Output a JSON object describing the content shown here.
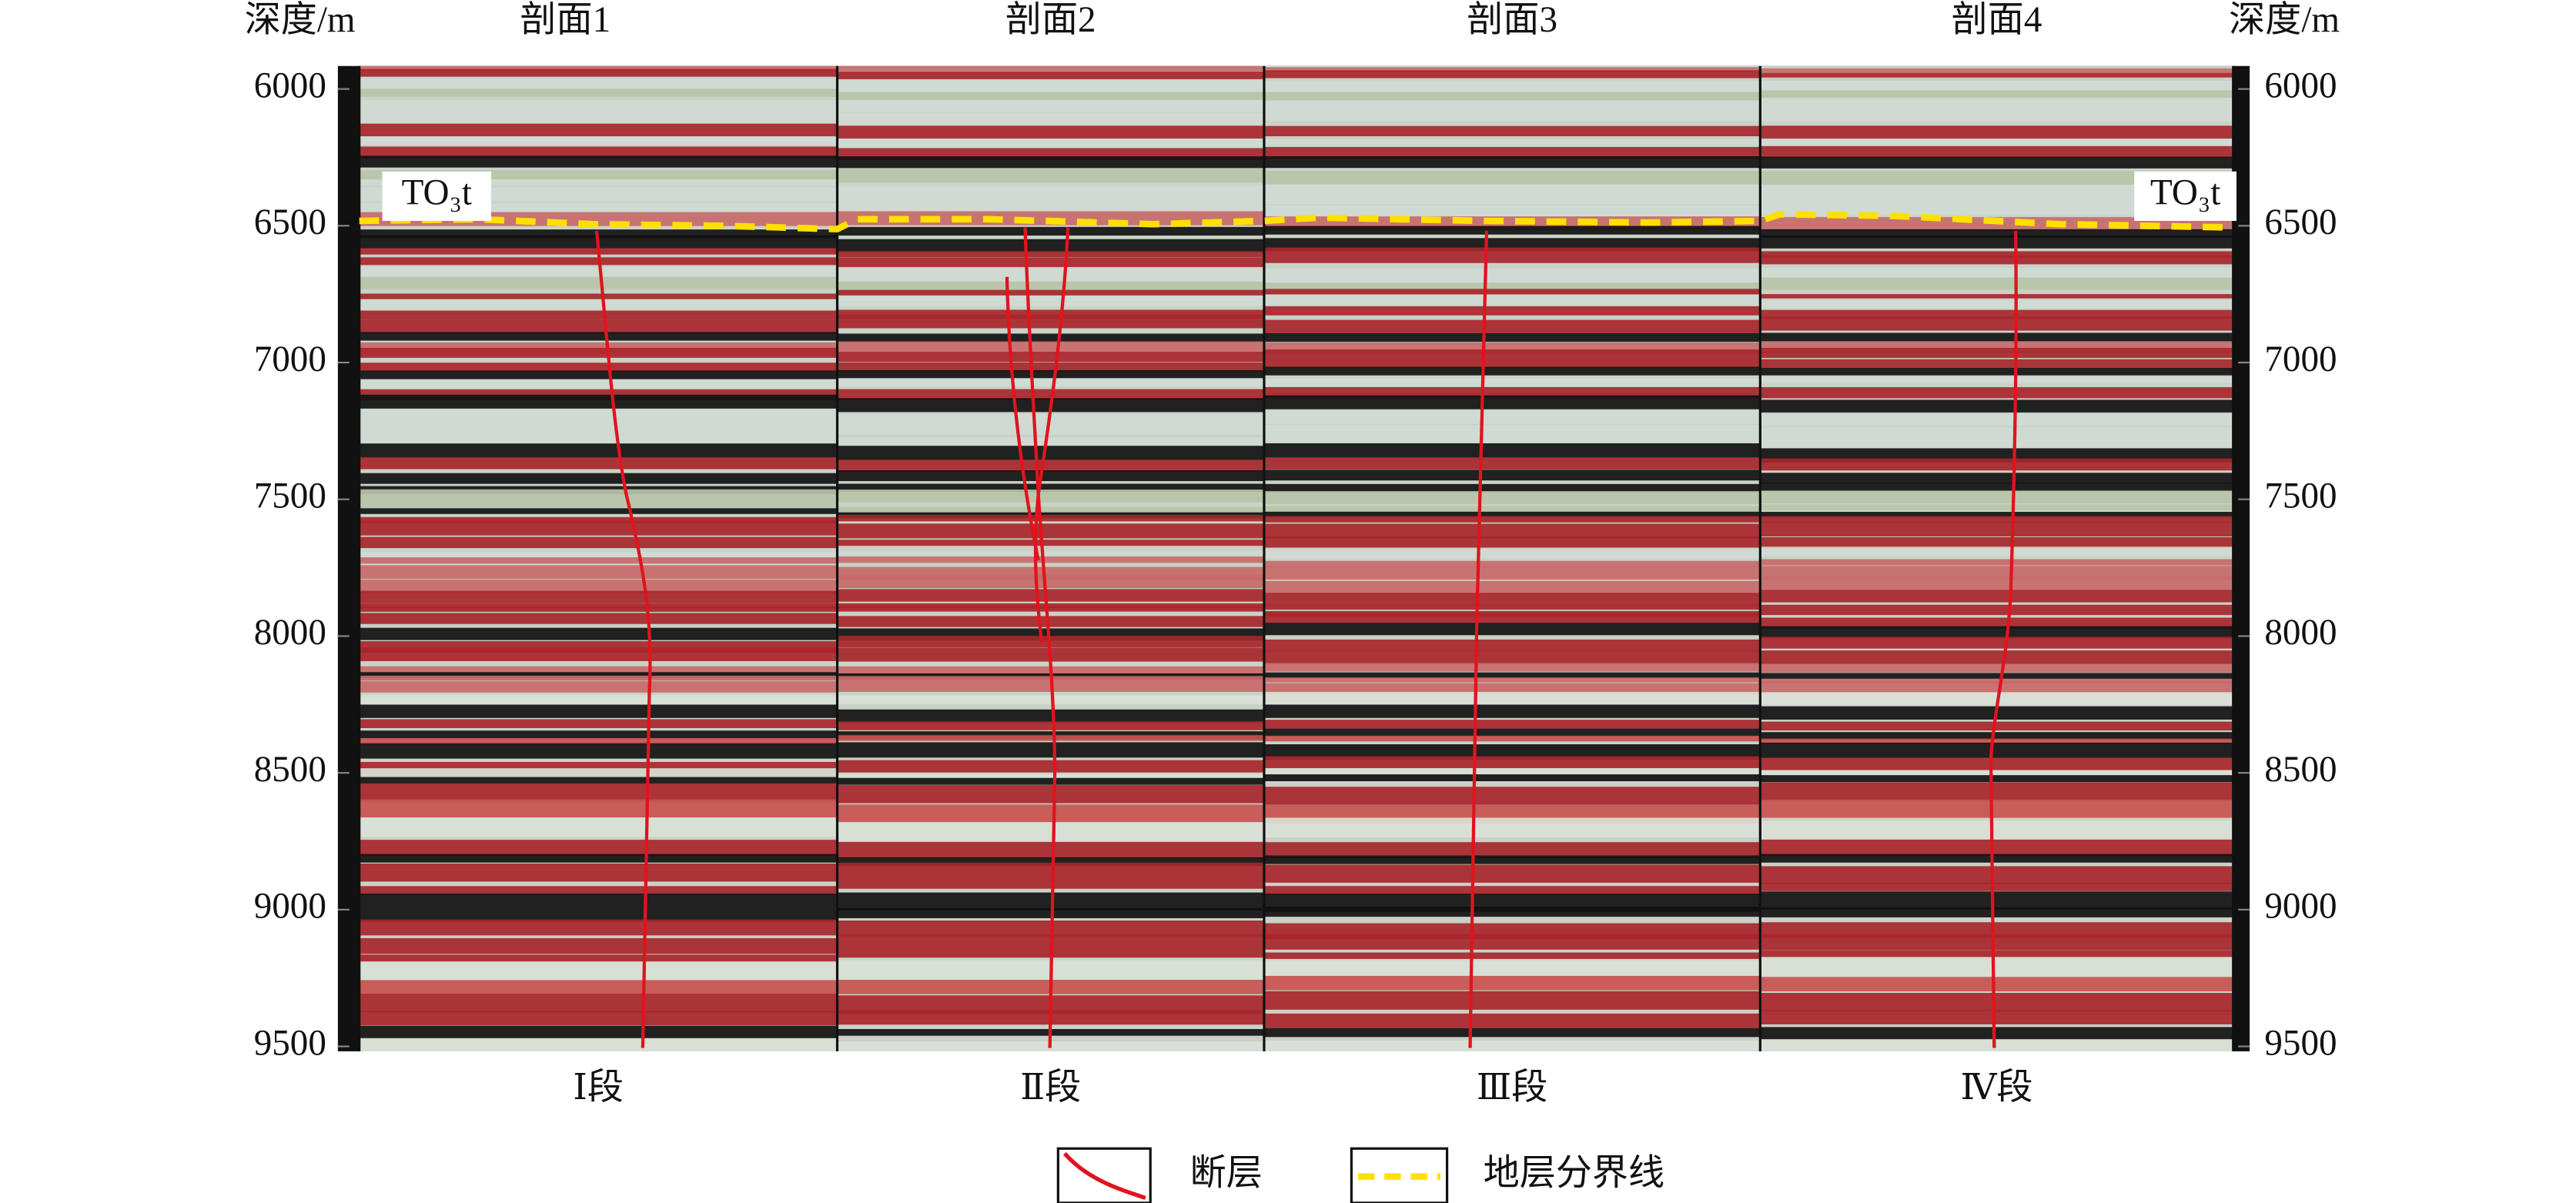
{
  "depth_axis": {
    "label": "深度/m",
    "lim": [
      5916,
      9518
    ],
    "ticks": [
      6000,
      6500,
      7000,
      7500,
      8000,
      8500,
      9000,
      9500
    ]
  },
  "sections": [
    {
      "title": "剖面1",
      "segment": "Ⅰ段"
    },
    {
      "title": "剖面2",
      "segment": "Ⅱ段"
    },
    {
      "title": "剖面3",
      "segment": "Ⅲ段"
    },
    {
      "title": "剖面4",
      "segment": "Ⅳ段"
    }
  ],
  "horizon_label": "TO₃t",
  "legend": {
    "fault": "断层",
    "boundary": "地层分界线"
  }
}
